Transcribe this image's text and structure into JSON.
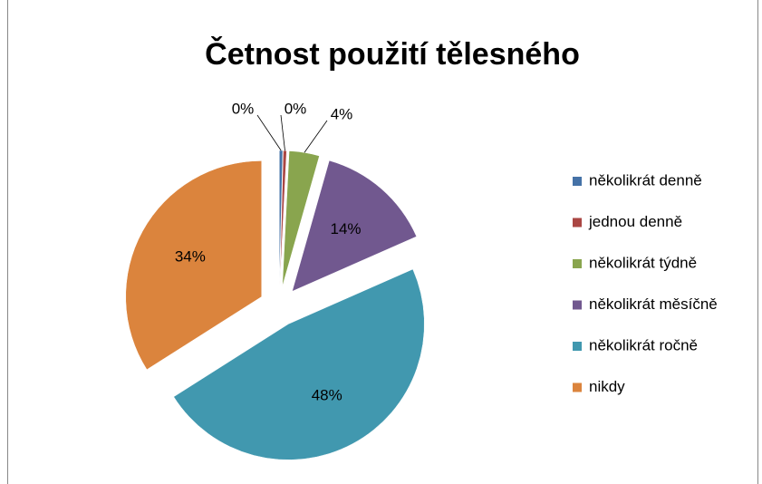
{
  "chart_data": {
    "type": "pie",
    "title": "Četnost použití tělesného",
    "categories": [
      "několikrát denně",
      "jednou denně",
      "několikrát týdně",
      "několikrát měsíčně",
      "několikrát ročně",
      "nikdy"
    ],
    "values": [
      0.4,
      0.4,
      3.6,
      14,
      47.6,
      34
    ],
    "value_labels": [
      "0%",
      "0%",
      "4%",
      "14%",
      "48%",
      "34%"
    ],
    "colors": [
      "#4572a7",
      "#aa4643",
      "#89a54e",
      "#71588f",
      "#4198af",
      "#db843d"
    ],
    "legend": "right"
  }
}
